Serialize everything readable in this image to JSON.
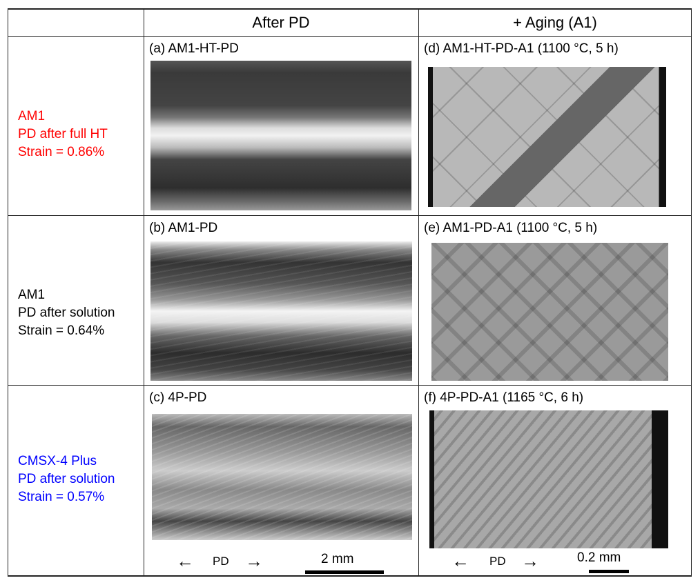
{
  "header": {
    "col1": "After PD",
    "col2": "+ Aging (A1)"
  },
  "rows": [
    {
      "label": [
        "AM1",
        "PD after full HT",
        "Strain = 0.86%"
      ],
      "color": "#ff0000",
      "left_caption": "(a) AM1-HT-PD",
      "right_caption": "(d) AM1-HT-PD-A1 (1100 °C, 5 h)"
    },
    {
      "label": [
        "AM1",
        "PD after solution",
        "Strain = 0.64%"
      ],
      "color": "#000000",
      "left_caption": "(b) AM1-PD",
      "right_caption": "(e) AM1-PD-A1 (1100 °C, 5 h)"
    },
    {
      "label": [
        "CMSX-4 Plus",
        "PD after solution",
        "Strain = 0.57%"
      ],
      "color": "#0000ff",
      "left_caption": "(c) 4P-PD",
      "right_caption": "(f) 4P-PD-A1 (1165 °C, 6 h)"
    }
  ],
  "footer": {
    "pd_label": "PD",
    "left_scale": "2 mm",
    "right_scale": "0.2 mm",
    "arrow_left": "←",
    "arrow_right": "→"
  }
}
